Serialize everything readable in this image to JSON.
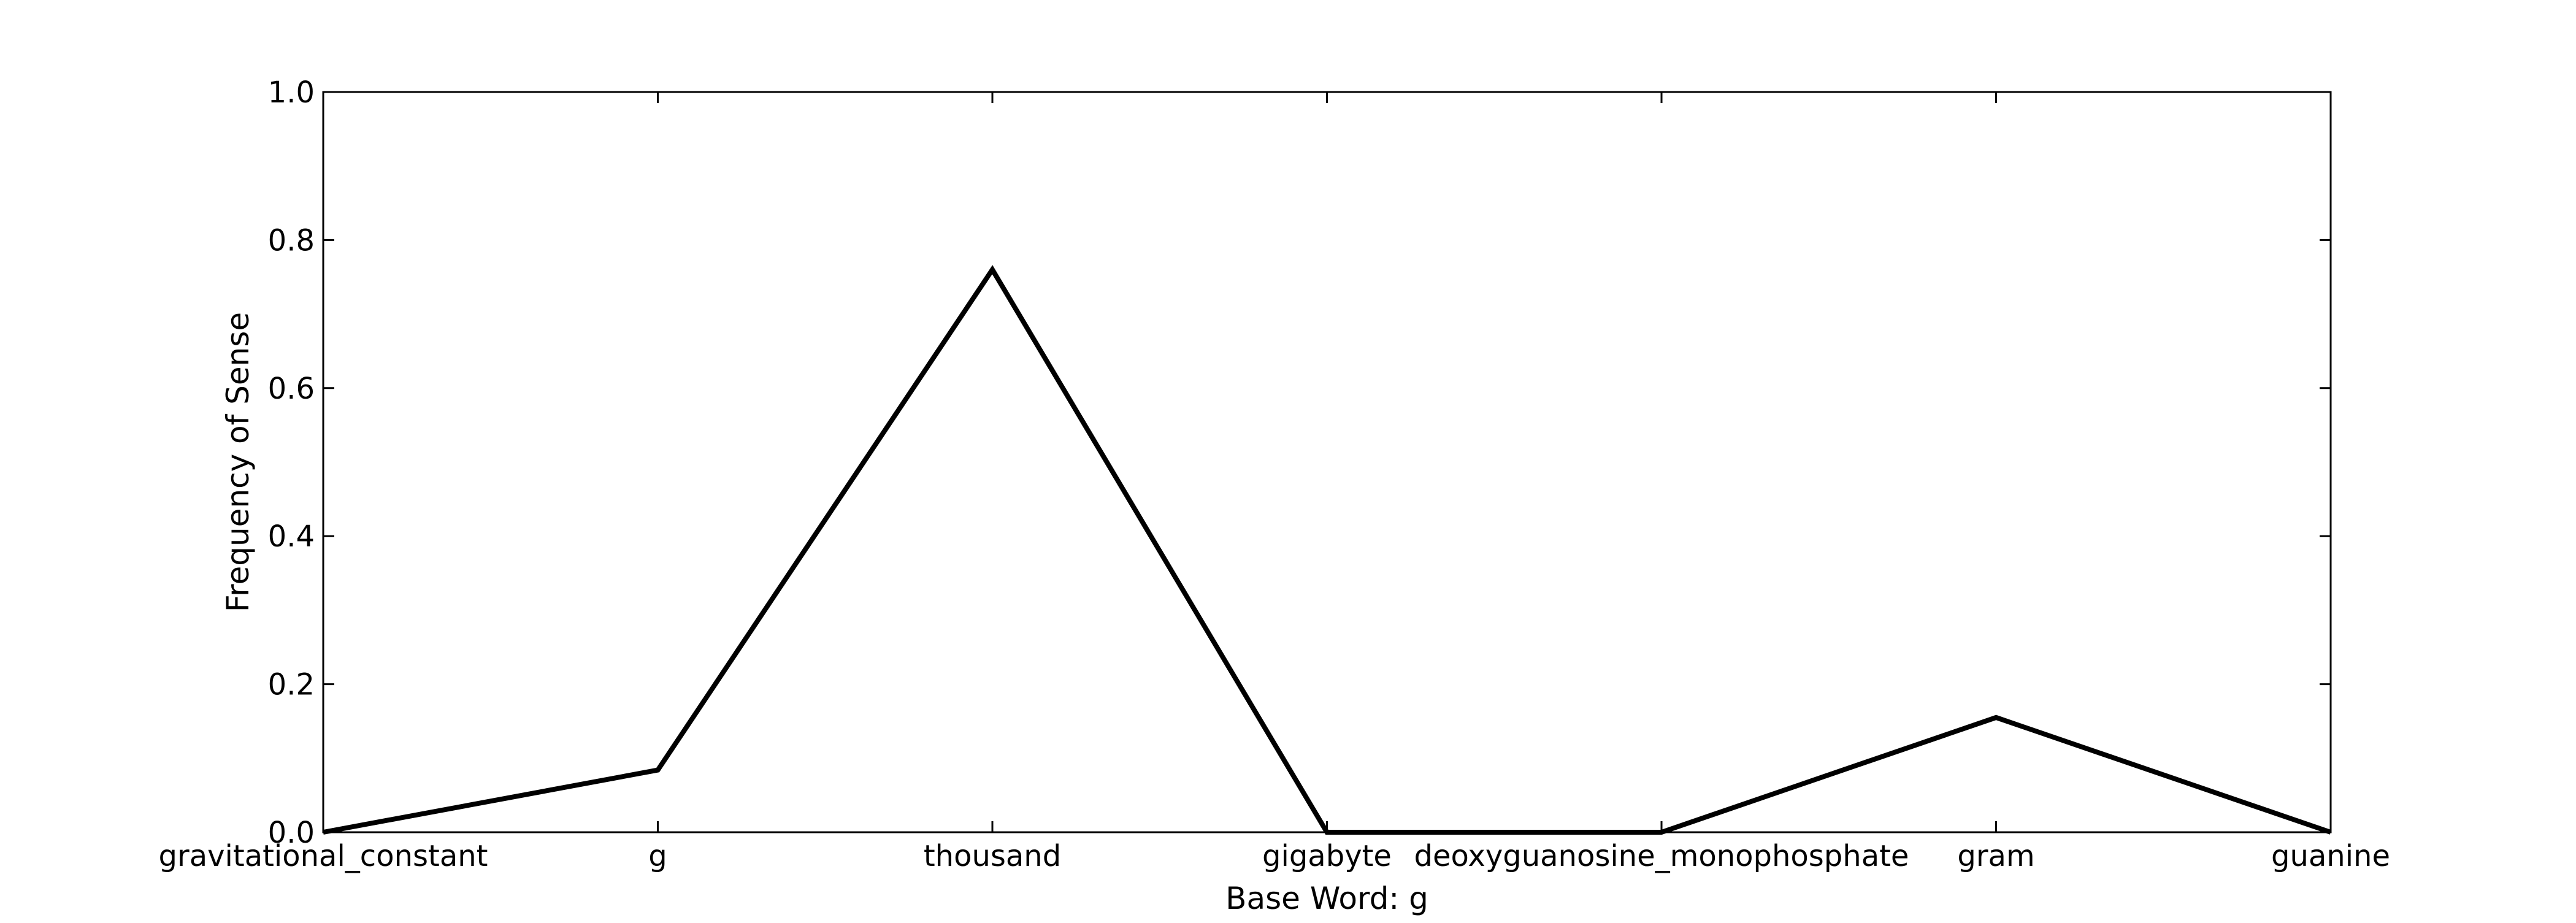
{
  "chart_data": {
    "type": "line",
    "title": "",
    "xlabel": "Base Word: g",
    "ylabel": "Frequency of Sense",
    "categories": [
      "gravitational_constant",
      "g",
      "thousand",
      "gigabyte",
      "deoxyguanosine_monophosphate",
      "gram",
      "guanine"
    ],
    "series": [
      {
        "values": [
          0.0,
          0.084,
          0.76,
          0.0,
          0.0,
          0.155,
          0.0
        ],
        "color": "#000000"
      }
    ],
    "ylim": [
      0.0,
      1.0
    ],
    "yticks": [
      "0.0",
      "0.2",
      "0.4",
      "0.6",
      "0.8",
      "1.0"
    ],
    "grid": false,
    "legend": "none"
  }
}
